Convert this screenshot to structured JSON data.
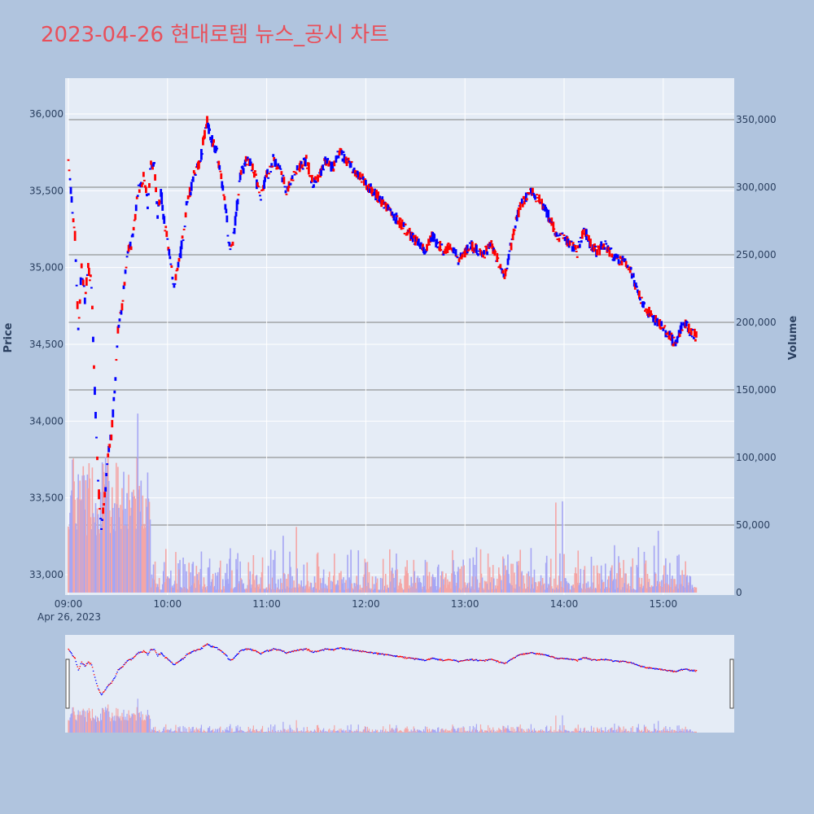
{
  "title": "2023-04-26 현대로템 뉴스_공시 차트",
  "colors": {
    "background": "#b0c4de",
    "plot_bg": "#e5ecf6",
    "title": "#e8505b",
    "up": "#ff0000",
    "down": "#0000ff",
    "volume_up": "#f4a6a6",
    "volume_down": "#a6a6f4",
    "hline": "#7f7f7f"
  },
  "chart_data": {
    "type": "candlestick",
    "date_label": "Apr 26, 2023",
    "ylabel": "Price",
    "y2label": "Volume",
    "x_ticks": [
      "09:00",
      "10:00",
      "11:00",
      "12:00",
      "13:00",
      "14:00",
      "15:00"
    ],
    "price_ticks": [
      "36,000",
      "35,500",
      "35,000",
      "34,500",
      "34,000",
      "33,500",
      "33,000"
    ],
    "volume_ticks": [
      "350,000",
      "300,000",
      "250,000",
      "200,000",
      "150,000",
      "100,000",
      "50,000",
      "0"
    ],
    "ylim": [
      32900,
      36050
    ],
    "y2lim": [
      0,
      358000
    ],
    "price_path": [
      [
        "09:00",
        35700
      ],
      [
        "09:02",
        35450
      ],
      [
        "09:04",
        35200
      ],
      [
        "09:06",
        34600
      ],
      [
        "09:08",
        35000
      ],
      [
        "09:10",
        34800
      ],
      [
        "09:12",
        35000
      ],
      [
        "09:14",
        34900
      ],
      [
        "09:16",
        34200
      ],
      [
        "09:18",
        33600
      ],
      [
        "09:20",
        33300
      ],
      [
        "09:22",
        33500
      ],
      [
        "09:24",
        33800
      ],
      [
        "09:26",
        33900
      ],
      [
        "09:28",
        34200
      ],
      [
        "09:30",
        34600
      ],
      [
        "09:32",
        34700
      ],
      [
        "09:34",
        34900
      ],
      [
        "09:36",
        35100
      ],
      [
        "09:38",
        35150
      ],
      [
        "09:40",
        35300
      ],
      [
        "09:42",
        35500
      ],
      [
        "09:44",
        35550
      ],
      [
        "09:46",
        35600
      ],
      [
        "09:48",
        35400
      ],
      [
        "09:50",
        35700
      ],
      [
        "09:52",
        35650
      ],
      [
        "09:54",
        35350
      ],
      [
        "09:56",
        35500
      ],
      [
        "09:58",
        35300
      ],
      [
        "10:00",
        35200
      ],
      [
        "10:02",
        35000
      ],
      [
        "10:04",
        34900
      ],
      [
        "10:06",
        35000
      ],
      [
        "10:08",
        35100
      ],
      [
        "10:10",
        35250
      ],
      [
        "10:12",
        35450
      ],
      [
        "10:14",
        35500
      ],
      [
        "10:16",
        35600
      ],
      [
        "10:18",
        35650
      ],
      [
        "10:20",
        35700
      ],
      [
        "10:22",
        35850
      ],
      [
        "10:24",
        35950
      ],
      [
        "10:26",
        35850
      ],
      [
        "10:28",
        35800
      ],
      [
        "10:30",
        35750
      ],
      [
        "10:32",
        35600
      ],
      [
        "10:34",
        35500
      ],
      [
        "10:36",
        35300
      ],
      [
        "10:38",
        35100
      ],
      [
        "10:40",
        35200
      ],
      [
        "10:42",
        35400
      ],
      [
        "10:44",
        35600
      ],
      [
        "10:48",
        35700
      ],
      [
        "10:52",
        35650
      ],
      [
        "10:56",
        35450
      ],
      [
        "11:00",
        35600
      ],
      [
        "11:04",
        35700
      ],
      [
        "11:08",
        35650
      ],
      [
        "11:12",
        35500
      ],
      [
        "11:16",
        35600
      ],
      [
        "11:20",
        35650
      ],
      [
        "11:24",
        35700
      ],
      [
        "11:28",
        35550
      ],
      [
        "11:32",
        35600
      ],
      [
        "11:36",
        35700
      ],
      [
        "11:40",
        35650
      ],
      [
        "11:44",
        35750
      ],
      [
        "11:48",
        35700
      ],
      [
        "11:52",
        35650
      ],
      [
        "11:56",
        35600
      ],
      [
        "12:00",
        35550
      ],
      [
        "12:04",
        35500
      ],
      [
        "12:08",
        35450
      ],
      [
        "12:12",
        35400
      ],
      [
        "12:16",
        35350
      ],
      [
        "12:20",
        35300
      ],
      [
        "12:24",
        35250
      ],
      [
        "12:28",
        35200
      ],
      [
        "12:32",
        35150
      ],
      [
        "12:36",
        35100
      ],
      [
        "12:40",
        35200
      ],
      [
        "12:44",
        35150
      ],
      [
        "12:48",
        35100
      ],
      [
        "12:52",
        35150
      ],
      [
        "12:56",
        35050
      ],
      [
        "13:00",
        35100
      ],
      [
        "13:04",
        35150
      ],
      [
        "13:08",
        35100
      ],
      [
        "13:12",
        35100
      ],
      [
        "13:16",
        35150
      ],
      [
        "13:20",
        35050
      ],
      [
        "13:24",
        34950
      ],
      [
        "13:28",
        35150
      ],
      [
        "13:32",
        35350
      ],
      [
        "13:36",
        35450
      ],
      [
        "13:40",
        35500
      ],
      [
        "13:44",
        35450
      ],
      [
        "13:48",
        35400
      ],
      [
        "13:52",
        35300
      ],
      [
        "13:56",
        35200
      ],
      [
        "14:00",
        35200
      ],
      [
        "14:04",
        35150
      ],
      [
        "14:08",
        35100
      ],
      [
        "14:12",
        35250
      ],
      [
        "14:16",
        35150
      ],
      [
        "14:20",
        35100
      ],
      [
        "14:24",
        35150
      ],
      [
        "14:28",
        35100
      ],
      [
        "14:32",
        35050
      ],
      [
        "14:36",
        35050
      ],
      [
        "14:40",
        35000
      ],
      [
        "14:44",
        34850
      ],
      [
        "14:48",
        34750
      ],
      [
        "14:52",
        34700
      ],
      [
        "14:56",
        34650
      ],
      [
        "15:00",
        34600
      ],
      [
        "15:04",
        34550
      ],
      [
        "15:08",
        34500
      ],
      [
        "15:12",
        34650
      ],
      [
        "15:16",
        34600
      ],
      [
        "15:20",
        34550
      ]
    ],
    "volume_series": {
      "up_color": "volume_up",
      "down_color": "volume_down"
    }
  }
}
